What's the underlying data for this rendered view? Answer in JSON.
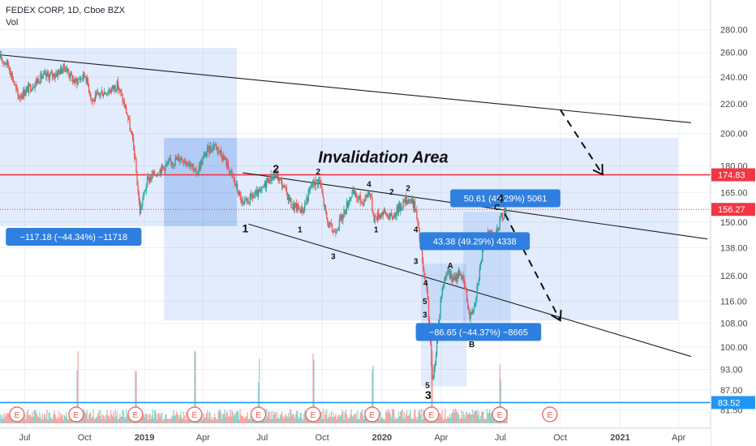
{
  "header": {
    "symbol_line": "FEDEX CORP, 1D, Cboe BZX",
    "vol_label": "Vol"
  },
  "chart_data": {
    "type": "candlestick",
    "title": "FEDEX CORP, 1D, Cboe BZX",
    "y_axis": {
      "scale": "log",
      "range": [
        78.5,
        305
      ],
      "ticks": [
        280,
        260,
        240,
        220,
        200,
        180,
        165,
        150,
        138,
        126,
        116,
        108,
        100,
        93,
        87,
        81.5
      ]
    },
    "y_tick_labels": [
      "280.00",
      "260.00",
      "240.00",
      "220.00",
      "200.00",
      "180.00",
      "165.00",
      "150.00",
      "138.00",
      "126.00",
      "116.00",
      "108.00",
      "100.00",
      "93.00",
      "87.00",
      "81.50"
    ],
    "x_axis": {
      "range": [
        "2018-05-24",
        "2021-05-20"
      ],
      "ticks": [
        {
          "date": "2018-07-01",
          "label": "Jul",
          "bold": false
        },
        {
          "date": "2018-10-01",
          "label": "Oct",
          "bold": false
        },
        {
          "date": "2019-01-01",
          "label": "2019",
          "bold": true
        },
        {
          "date": "2019-04-01",
          "label": "Apr",
          "bold": false
        },
        {
          "date": "2019-07-01",
          "label": "Jul",
          "bold": false
        },
        {
          "date": "2019-10-01",
          "label": "Oct",
          "bold": false
        },
        {
          "date": "2020-01-01",
          "label": "2020",
          "bold": true
        },
        {
          "date": "2020-04-01",
          "label": "Apr",
          "bold": false
        },
        {
          "date": "2020-07-01",
          "label": "Jul",
          "bold": false
        },
        {
          "date": "2020-10-01",
          "label": "Oct",
          "bold": false
        },
        {
          "date": "2021-01-01",
          "label": "2021",
          "bold": true
        },
        {
          "date": "2021-04-01",
          "label": "Apr",
          "bold": false
        }
      ]
    },
    "price_path": [
      [
        "2018-05-24",
        255
      ],
      [
        "2018-06-05",
        250
      ],
      [
        "2018-06-20",
        225
      ],
      [
        "2018-07-10",
        233
      ],
      [
        "2018-07-25",
        240
      ],
      [
        "2018-08-15",
        242
      ],
      [
        "2018-08-31",
        248
      ],
      [
        "2018-09-15",
        236
      ],
      [
        "2018-10-01",
        242
      ],
      [
        "2018-10-12",
        222
      ],
      [
        "2018-10-25",
        228
      ],
      [
        "2018-11-08",
        230
      ],
      [
        "2018-11-20",
        234
      ],
      [
        "2018-12-05",
        212
      ],
      [
        "2018-12-15",
        190
      ],
      [
        "2018-12-24",
        155
      ],
      [
        "2019-01-05",
        172
      ],
      [
        "2019-01-25",
        178
      ],
      [
        "2019-02-10",
        182
      ],
      [
        "2019-02-25",
        185
      ],
      [
        "2019-03-10",
        182
      ],
      [
        "2019-03-20",
        175
      ],
      [
        "2019-04-05",
        188
      ],
      [
        "2019-04-18",
        193
      ],
      [
        "2019-05-01",
        186
      ],
      [
        "2019-05-15",
        174
      ],
      [
        "2019-06-01",
        158
      ],
      [
        "2019-06-15",
        163
      ],
      [
        "2019-06-28",
        165
      ],
      [
        "2019-07-08",
        172
      ],
      [
        "2019-07-22",
        175
      ],
      [
        "2019-08-05",
        166
      ],
      [
        "2019-08-15",
        158
      ],
      [
        "2019-09-01",
        156
      ],
      [
        "2019-09-15",
        170
      ],
      [
        "2019-09-26",
        172
      ],
      [
        "2019-10-08",
        150
      ],
      [
        "2019-10-18",
        145
      ],
      [
        "2019-11-01",
        153
      ],
      [
        "2019-11-15",
        165
      ],
      [
        "2019-12-01",
        160
      ],
      [
        "2019-12-12",
        166
      ],
      [
        "2019-12-19",
        152
      ],
      [
        "2020-01-02",
        155
      ],
      [
        "2020-01-15",
        152
      ],
      [
        "2020-01-28",
        158
      ],
      [
        "2020-02-10",
        162
      ],
      [
        "2020-02-20",
        158
      ],
      [
        "2020-02-28",
        140
      ],
      [
        "2020-03-05",
        125
      ],
      [
        "2020-03-10",
        118
      ],
      [
        "2020-03-18",
        88
      ],
      [
        "2020-03-24",
        100
      ],
      [
        "2020-03-31",
        118
      ],
      [
        "2020-04-08",
        128
      ],
      [
        "2020-04-20",
        124
      ],
      [
        "2020-04-29",
        128
      ],
      [
        "2020-05-08",
        120
      ],
      [
        "2020-05-14",
        110
      ],
      [
        "2020-05-22",
        116
      ],
      [
        "2020-06-05",
        140
      ],
      [
        "2020-06-15",
        146
      ],
      [
        "2020-06-22",
        142
      ],
      [
        "2020-06-29",
        150
      ],
      [
        "2020-07-06",
        155
      ],
      [
        "2020-07-10",
        156.27
      ]
    ],
    "volume_spikes": [
      "2018-09-19",
      "2018-12-18",
      "2019-03-19",
      "2019-06-25",
      "2019-09-17",
      "2019-12-17",
      "2020-03-17",
      "2020-06-30"
    ],
    "earnings_markers": [
      "2018-06-19",
      "2018-09-18",
      "2018-12-18",
      "2019-03-19",
      "2019-06-25",
      "2019-09-17",
      "2019-12-17",
      "2020-03-17",
      "2020-06-30",
      "2020-09-15"
    ],
    "earnings_label": "E",
    "price_tags": [
      {
        "value": 174.83,
        "text": "174.83",
        "color": "#f23645"
      },
      {
        "value": 156.27,
        "text": "156.27",
        "color": "#f23645"
      },
      {
        "value": 83.52,
        "text": "83.52",
        "color": "#2196f3"
      }
    ],
    "horizontal_lines": [
      {
        "value": 174.83,
        "style": "solid",
        "color": "#f23645"
      },
      {
        "value": 156.27,
        "style": "dotted",
        "color": "#f23645"
      },
      {
        "value": 83.52,
        "style": "solid",
        "color": "#2196f3"
      }
    ],
    "trendlines": [
      {
        "from": [
          "2018-05-24",
          258
        ],
        "to": [
          "2021-04-20",
          207
        ]
      },
      {
        "from": [
          "2019-06-01",
          176
        ],
        "to": [
          "2021-05-15",
          142
        ]
      },
      {
        "from": [
          "2019-06-10",
          149
        ],
        "to": [
          "2021-04-20",
          97
        ]
      }
    ],
    "dashed_arrows": [
      {
        "points": [
          [
            "2020-10-01",
            216
          ],
          [
            "2020-12-05",
            175
          ]
        ]
      },
      {
        "points": [
          [
            "2020-07-08",
            154
          ],
          [
            "2020-10-01",
            109
          ]
        ]
      }
    ],
    "shaded_boxes": [
      {
        "from": [
          "2018-05-24",
          264
        ],
        "to": [
          "2019-05-23",
          148
        ]
      },
      {
        "from": [
          "2019-01-31",
          197
        ],
        "to": [
          "2021-03-31",
          109
        ]
      },
      {
        "from": [
          "2019-01-31",
          197
        ],
        "to": [
          "2019-05-23",
          148
        ]
      },
      {
        "from": [
          "2020-03-01",
          131
        ],
        "to": [
          "2020-05-10",
          88
        ]
      },
      {
        "from": [
          "2020-05-05",
          155
        ],
        "to": [
          "2020-07-17",
          104
        ]
      }
    ],
    "measure_labels": [
      {
        "text": "−117.18 (−44.34%) −11718",
        "anchor": [
          "2018-06-02",
          143
        ]
      },
      {
        "text": "50.61 (49.29%) 5061",
        "anchor": [
          "2020-04-15",
          162
        ]
      },
      {
        "text": "43.38 (49.29%) 4338",
        "anchor": [
          "2020-02-28",
          141
        ]
      },
      {
        "text": "−86.65 (−44.37%) −8665",
        "anchor": [
          "2020-02-22",
          105
        ]
      }
    ],
    "annotation": {
      "text": "Invalidation Area",
      "anchor": [
        "2019-09-25",
        182
      ]
    },
    "wave_labels": [
      {
        "text": "1",
        "at": [
          "2019-06-05",
          145
        ],
        "size": "large"
      },
      {
        "text": "2",
        "at": [
          "2019-07-22",
          176
        ],
        "size": "large"
      },
      {
        "text": "1",
        "at": [
          "2019-08-28",
          145
        ],
        "size": "small"
      },
      {
        "text": "2",
        "at": [
          "2019-09-25",
          175
        ],
        "size": "small"
      },
      {
        "text": "3",
        "at": [
          "2019-10-18",
          133
        ],
        "size": "small"
      },
      {
        "text": "4",
        "at": [
          "2019-12-12",
          168
        ],
        "size": "small"
      },
      {
        "text": "1",
        "at": [
          "2019-12-23",
          145
        ],
        "size": "small"
      },
      {
        "text": "2",
        "at": [
          "2020-01-16",
          164
        ],
        "size": "small"
      },
      {
        "text": "2",
        "at": [
          "2020-02-10",
          166
        ],
        "size": "small"
      },
      {
        "text": "4",
        "at": [
          "2020-02-22",
          145
        ],
        "size": "small"
      },
      {
        "text": "3",
        "at": [
          "2020-02-22",
          131
        ],
        "size": "small"
      },
      {
        "text": "4",
        "at": [
          "2020-03-08",
          122
        ],
        "size": "small"
      },
      {
        "text": "5",
        "at": [
          "2020-03-07",
          115
        ],
        "size": "small"
      },
      {
        "text": "3",
        "at": [
          "2020-03-07",
          110
        ],
        "size": "small"
      },
      {
        "text": "5",
        "at": [
          "2020-03-11",
          87.5
        ],
        "size": "small"
      },
      {
        "text": "3",
        "at": [
          "2020-03-12",
          84.5
        ],
        "size": "large"
      },
      {
        "text": "A",
        "at": [
          "2020-04-15",
          129
        ],
        "size": "small"
      },
      {
        "text": "B",
        "at": [
          "2020-05-18",
          100
        ],
        "size": "small"
      },
      {
        "text": "C",
        "at": [
          "2020-06-26",
          156
        ],
        "size": "small"
      },
      {
        "text": "4",
        "at": [
          "2020-07-01",
          160
        ],
        "size": "large"
      }
    ]
  }
}
